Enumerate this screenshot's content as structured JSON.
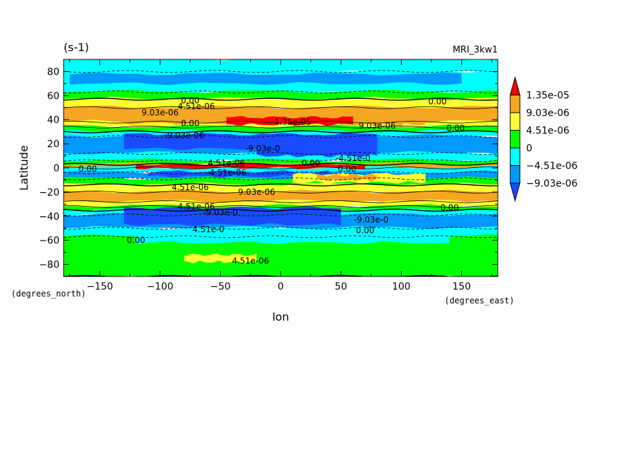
{
  "chart_data": {
    "type": "heatmap",
    "title": "(s-1)",
    "model_label": "MRI_3kw1",
    "xlabel": "lon",
    "ylabel": "Latitude",
    "x_units": "(degrees_east)",
    "y_units": "(degrees_north)",
    "xlim": [
      -180,
      180
    ],
    "ylim": [
      -90,
      90
    ],
    "x_ticks": [
      -150,
      -100,
      -50,
      0,
      50,
      100,
      150
    ],
    "y_ticks": [
      -80,
      -60,
      -40,
      -20,
      0,
      20,
      40,
      60,
      80
    ],
    "colorbar": {
      "levels": [
        "1.35e-05",
        "9.03e-06",
        "4.51e-06",
        "0",
        "-4.51e-06",
        "-9.03e-06"
      ],
      "colors": [
        "#ff0000",
        "#f5a623",
        "#ffff33",
        "#00ff00",
        "#00ffff",
        "#0099ff",
        "#1a4cff"
      ]
    },
    "bands": [
      {
        "lat_top": 90,
        "lat_bot": 80,
        "value": -4.51e-06
      },
      {
        "lat_top": 80,
        "lat_bot": 63,
        "value": -4.51e-06
      },
      {
        "lat_top": 63,
        "lat_bot": 57,
        "value": 0
      },
      {
        "lat_top": 57,
        "lat_bot": 50,
        "value": 4.51e-06
      },
      {
        "lat_top": 50,
        "lat_bot": 38,
        "value": 9.03e-06
      },
      {
        "lat_top": 38,
        "lat_bot": 34,
        "value": 4.51e-06
      },
      {
        "lat_top": 34,
        "lat_bot": 30,
        "value": 0
      },
      {
        "lat_top": 30,
        "lat_bot": 26,
        "value": -4.51e-06
      },
      {
        "lat_top": 26,
        "lat_bot": 12,
        "value": -9.03e-06
      },
      {
        "lat_top": 12,
        "lat_bot": 6,
        "value": -4.51e-06
      },
      {
        "lat_top": 6,
        "lat_bot": 3,
        "value": 0
      },
      {
        "lat_top": 3,
        "lat_bot": 0,
        "value": 9.03e-06
      },
      {
        "lat_top": 0,
        "lat_bot": -4,
        "value": -4.51e-06
      },
      {
        "lat_top": -4,
        "lat_bot": -9,
        "value": -9.03e-06
      },
      {
        "lat_top": -9,
        "lat_bot": -14,
        "value": 0
      },
      {
        "lat_top": -14,
        "lat_bot": -20,
        "value": 4.51e-06
      },
      {
        "lat_top": -20,
        "lat_bot": -28,
        "value": 9.03e-06
      },
      {
        "lat_top": -28,
        "lat_bot": -32,
        "value": 4.51e-06
      },
      {
        "lat_top": -32,
        "lat_bot": -35,
        "value": 0
      },
      {
        "lat_top": -35,
        "lat_bot": -39,
        "value": -4.51e-06
      },
      {
        "lat_top": -39,
        "lat_bot": -50,
        "value": -9.03e-06
      },
      {
        "lat_top": -50,
        "lat_bot": -57,
        "value": -4.51e-06
      },
      {
        "lat_top": -57,
        "lat_bot": -90,
        "value": 0
      }
    ],
    "patches": [
      {
        "lon": [
          -130,
          20
        ],
        "lat": [
          47,
          37
        ],
        "value": 9.03e-06
      },
      {
        "lon": [
          50,
          120
        ],
        "lat": [
          44,
          36
        ],
        "value": 9.03e-06
      },
      {
        "lon": [
          -45,
          60
        ],
        "lat": [
          42,
          36
        ],
        "value": 1.35e-05
      },
      {
        "lon": [
          -130,
          80
        ],
        "lat": [
          28,
          16
        ],
        "value": -1.35e-05
      },
      {
        "lon": [
          -20,
          80
        ],
        "lat": [
          18,
          10
        ],
        "value": -1.35e-05
      },
      {
        "lon": [
          -120,
          70
        ],
        "lat": [
          3,
          0
        ],
        "value": 1.35e-05
      },
      {
        "lon": [
          -110,
          40
        ],
        "lat": [
          -3,
          -7
        ],
        "value": -1.35e-05
      },
      {
        "lon": [
          10,
          120
        ],
        "lat": [
          -5,
          -12
        ],
        "value": 4.51e-06
      },
      {
        "lon": [
          30,
          80
        ],
        "lat": [
          -6,
          -10
        ],
        "value": 9.03e-06
      },
      {
        "lon": [
          -130,
          50
        ],
        "lat": [
          -33,
          -47
        ],
        "value": -1.35e-05
      },
      {
        "lon": [
          -120,
          140
        ],
        "lat": [
          -52,
          -62
        ],
        "value": -4.51e-06
      },
      {
        "lon": [
          -80,
          -20
        ],
        "lat": [
          -72,
          -78
        ],
        "value": 4.51e-06
      },
      {
        "lon": [
          -175,
          150
        ],
        "lat": [
          78,
          70
        ],
        "value": -9.03e-06
      }
    ],
    "contour_labels": [
      {
        "text": "0.00",
        "lon": -75,
        "lat": 56
      },
      {
        "text": "4.51e-06",
        "lon": -70,
        "lat": 51
      },
      {
        "text": "9.03e-06",
        "lon": -100,
        "lat": 46
      },
      {
        "text": "1.35e-05",
        "lon": 10,
        "lat": 38
      },
      {
        "text": "9.03e-06",
        "lon": 80,
        "lat": 35
      },
      {
        "text": "0.00",
        "lon": 130,
        "lat": 55
      },
      {
        "text": "0.00",
        "lon": 145,
        "lat": 33
      },
      {
        "text": "0.00",
        "lon": -75,
        "lat": 37
      },
      {
        "text": "-9.03e-06",
        "lon": -80,
        "lat": 27
      },
      {
        "text": "-9.03e-0",
        "lon": -15,
        "lat": 16
      },
      {
        "text": "-4.51e-0",
        "lon": 60,
        "lat": 8
      },
      {
        "text": "4.51e-06",
        "lon": -45,
        "lat": 4
      },
      {
        "text": "0.00",
        "lon": 25,
        "lat": 4
      },
      {
        "text": "0.00",
        "lon": 55,
        "lat": -1
      },
      {
        "text": "0.00",
        "lon": -160,
        "lat": -1
      },
      {
        "text": "-4.51e-06",
        "lon": -45,
        "lat": -4
      },
      {
        "text": "4.51e-06",
        "lon": -75,
        "lat": -16
      },
      {
        "text": "9.03e-06",
        "lon": -20,
        "lat": -20
      },
      {
        "text": "0.00",
        "lon": 140,
        "lat": -33
      },
      {
        "text": "4.51e-06",
        "lon": -70,
        "lat": -32
      },
      {
        "text": "-9.03e-0",
        "lon": -50,
        "lat": -37
      },
      {
        "text": "-9.03e-0",
        "lon": 75,
        "lat": -43
      },
      {
        "text": "4.51e-0",
        "lon": -60,
        "lat": -51
      },
      {
        "text": "0.00",
        "lon": 70,
        "lat": -52
      },
      {
        "text": "0.00",
        "lon": -120,
        "lat": -60
      },
      {
        "text": "4.51e-06",
        "lon": -25,
        "lat": -77
      }
    ]
  }
}
